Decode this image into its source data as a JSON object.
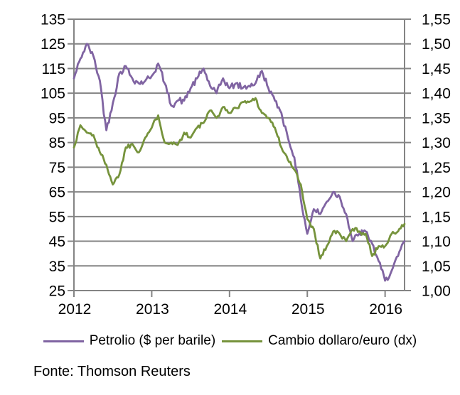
{
  "chart_data": {
    "type": "line",
    "title": "",
    "x": {
      "unit": "months_since_jan_2012",
      "year_tick_months": [
        0,
        12,
        24,
        36,
        48
      ],
      "year_labels": [
        "2012",
        "2013",
        "2014",
        "2015",
        "2016"
      ],
      "months_total": 51
    },
    "left_axis": {
      "min": 25,
      "max": 135,
      "step": 10,
      "tick_labels": [
        "135",
        "125",
        "115",
        "105",
        "95",
        "85",
        "75",
        "65",
        "55",
        "45",
        "35",
        "25"
      ]
    },
    "right_axis": {
      "min": 1.0,
      "max": 1.55,
      "step": 0.05,
      "tick_labels": [
        "1,55",
        "1,50",
        "1,45",
        "1,40",
        "1,35",
        "1,30",
        "1,25",
        "1,20",
        "1,15",
        "1,10",
        "1,05",
        "1,00"
      ]
    },
    "grid": true,
    "legend_position": "bottom",
    "series": [
      {
        "name": "Petrolio ($ per barile)",
        "axis": "left",
        "color": "#8064A2",
        "values": [
          111,
          119,
          125,
          120,
          110,
          90,
          101,
          113,
          116,
          111,
          109,
          110,
          112,
          117,
          109,
          100,
          102,
          102,
          107,
          111,
          115,
          108,
          105,
          111,
          107,
          109,
          107,
          108,
          109,
          114,
          107,
          102,
          97,
          87,
          79,
          62,
          48,
          58,
          56,
          61,
          65,
          63,
          56,
          45,
          48,
          49,
          44,
          37,
          29,
          33,
          39,
          45
        ]
      },
      {
        "name": "Cambio dollaro/euro (dx)",
        "axis": "right",
        "color": "#76933C",
        "values": [
          1.29,
          1.335,
          1.32,
          1.315,
          1.28,
          1.255,
          1.215,
          1.235,
          1.29,
          1.297,
          1.28,
          1.31,
          1.33,
          1.355,
          1.3,
          1.3,
          1.295,
          1.32,
          1.31,
          1.33,
          1.34,
          1.365,
          1.35,
          1.372,
          1.36,
          1.37,
          1.382,
          1.382,
          1.39,
          1.36,
          1.35,
          1.33,
          1.29,
          1.265,
          1.245,
          1.215,
          1.145,
          1.125,
          1.065,
          1.09,
          1.12,
          1.115,
          1.1,
          1.125,
          1.12,
          1.115,
          1.07,
          1.09,
          1.09,
          1.115,
          1.12,
          1.135
        ]
      }
    ]
  },
  "legend": {
    "items": [
      {
        "label": "Petrolio ($ per barile)",
        "color": "#8064A2"
      },
      {
        "label": "Cambio dollaro/euro (dx)",
        "color": "#76933C"
      }
    ]
  },
  "footer": {
    "source": "Fonte: Thomson Reuters"
  },
  "colors": {
    "grid": "#848484",
    "text": "#000000",
    "background": "#FFFFFF"
  }
}
